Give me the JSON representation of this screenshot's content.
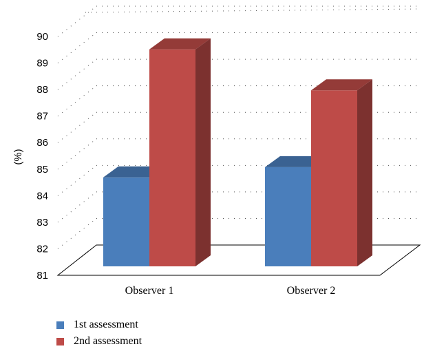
{
  "chart_data": {
    "type": "bar",
    "title": "",
    "xlabel": "",
    "ylabel": "(%)",
    "ylim": [
      81,
      90
    ],
    "yticks": [
      81,
      82,
      83,
      84,
      85,
      86,
      87,
      88,
      89,
      90
    ],
    "categories": [
      "Observer 1",
      "Observer 2"
    ],
    "series": [
      {
        "name": "1st assessment",
        "values": [
          84.5,
          84.9
        ],
        "color": "#4a7ebb"
      },
      {
        "name": "2nd assessment",
        "values": [
          89.5,
          87.9
        ],
        "color": "#be4b48"
      }
    ],
    "grid": true,
    "three_d": true,
    "legend_position": "bottom-left"
  }
}
